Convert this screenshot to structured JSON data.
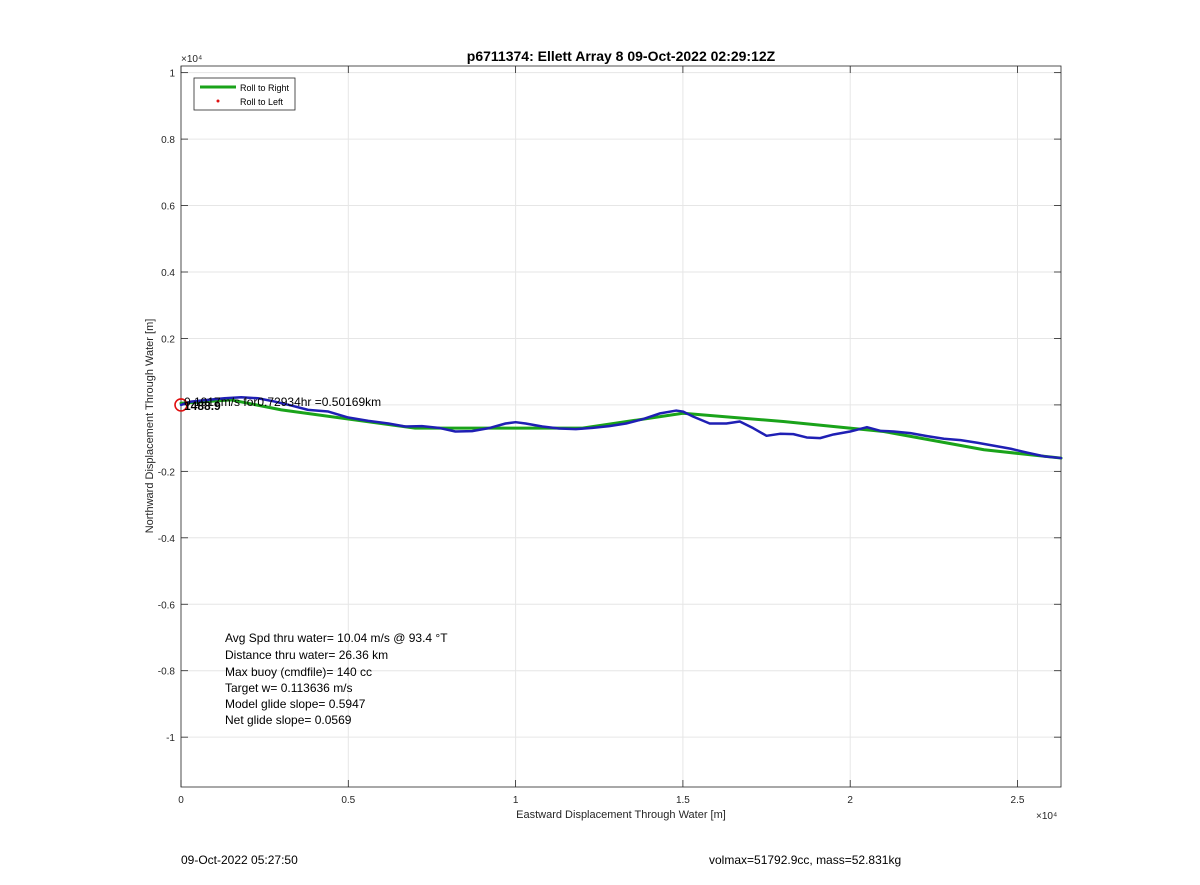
{
  "chart_data": {
    "type": "line",
    "title": "p6711374: Ellett Array 8 09-Oct-2022 02:29:12Z",
    "xlabel": "Eastward Displacement Through Water [m]",
    "ylabel": "Northward Displacement Through Water [m]",
    "x_exponent": "×10⁴",
    "y_exponent": "×10⁴",
    "xlim": [
      0,
      26300
    ],
    "ylim": [
      -11500,
      10200
    ],
    "x_ticks": [
      0,
      5000,
      10000,
      15000,
      20000,
      25000
    ],
    "x_tick_labels": [
      "0",
      "0.5",
      "1",
      "1.5",
      "2",
      "2.5"
    ],
    "y_ticks": [
      10000,
      8000,
      6000,
      4000,
      2000,
      0,
      -2000,
      -4000,
      -6000,
      -8000,
      -10000
    ],
    "y_tick_labels": [
      "1",
      "0.8",
      "0.6",
      "0.4",
      "0.2",
      "",
      "-0.2",
      "-0.4",
      "-0.6",
      "-0.8",
      "-1"
    ],
    "grid": true,
    "legend": {
      "placement": "top-left",
      "entries": [
        {
          "label": "Roll to Right",
          "color": "#1aa31a",
          "marker": "line"
        },
        {
          "label": "Roll to Left",
          "color": "#e01010",
          "marker": "dot"
        }
      ]
    },
    "series": [
      {
        "name": "Roll to Right",
        "color": "#1aa31a",
        "x": [
          0,
          1500,
          3000,
          7000,
          10000,
          12000,
          15000,
          18000,
          21000,
          24000,
          26300
        ],
        "y": [
          50,
          150,
          -150,
          -700,
          -700,
          -700,
          -250,
          -500,
          -800,
          -1350,
          -1600
        ]
      },
      {
        "color": "#1f1fb4",
        "x": [
          0,
          300,
          800,
          1300,
          1800,
          2300,
          2800,
          3300,
          3800,
          4400,
          5000,
          5600,
          6200,
          6700,
          7200,
          7700,
          8200,
          8700,
          9200,
          9700,
          10000,
          10300,
          10800,
          11300,
          11800,
          12300,
          12800,
          13300,
          13800,
          14300,
          14800,
          15000,
          15300,
          15800,
          16300,
          16700,
          17100,
          17500,
          17900,
          18300,
          18700,
          19100,
          19500,
          20000,
          20500,
          20900,
          21300,
          21800,
          22300,
          22800,
          23300,
          23800,
          24300,
          24800,
          25300,
          25800,
          26300
        ],
        "y": [
          0,
          100,
          150,
          200,
          230,
          200,
          100,
          -20,
          -150,
          -200,
          -380,
          -480,
          -560,
          -650,
          -640,
          -690,
          -800,
          -790,
          -700,
          -560,
          -520,
          -560,
          -650,
          -710,
          -730,
          -690,
          -640,
          -560,
          -430,
          -260,
          -170,
          -200,
          -350,
          -560,
          -560,
          -500,
          -700,
          -930,
          -870,
          -880,
          -980,
          -1000,
          -890,
          -800,
          -670,
          -780,
          -800,
          -850,
          -940,
          -1020,
          -1060,
          -1140,
          -1230,
          -1320,
          -1440,
          -1550,
          -1600
        ]
      }
    ],
    "start_marker": {
      "x": 0,
      "y": 0,
      "color": "#e01010"
    },
    "point_annotation": "0.1917m/s for0.72934hr =0.50169km",
    "stats_lines": [
      "Avg Spd thru water= 10.04 m/s @  93.4 °T",
      "Distance thru water= 26.36 km",
      "Max buoy (cmdfile)= 140 cc",
      "Target w= 0.113636 m/s",
      "Model glide slope= 0.5947",
      "Net glide slope= 0.0569"
    ]
  },
  "footer": {
    "timestamp": "09-Oct-2022 05:27:50",
    "volmax_mass": "volmax=51792.9cc, mass=52.831kg"
  }
}
